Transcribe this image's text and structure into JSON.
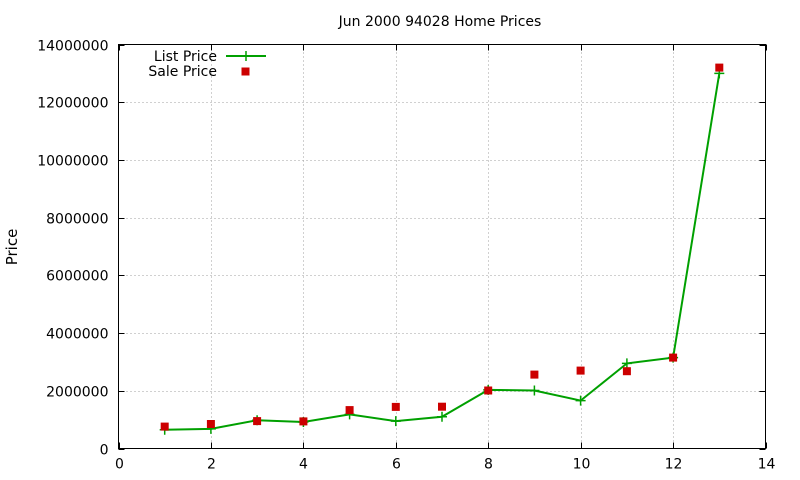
{
  "chart_data": {
    "type": "line",
    "title": "Jun 2000 94028 Home Prices",
    "xlabel": "",
    "ylabel": "Price",
    "xlim": [
      0,
      14
    ],
    "ylim": [
      0,
      14000000
    ],
    "x_ticks": [
      0,
      2,
      4,
      6,
      8,
      10,
      12,
      14
    ],
    "y_ticks": [
      0,
      2000000,
      4000000,
      6000000,
      8000000,
      10000000,
      12000000,
      14000000
    ],
    "grid": true,
    "legend_position": "top-left",
    "series": [
      {
        "name": "List Price",
        "style": "line-with-plus-markers",
        "color": "#00a000",
        "x": [
          1,
          2,
          3,
          4,
          5,
          6,
          7,
          8,
          9,
          10,
          11,
          12,
          13
        ],
        "values": [
          650000,
          680000,
          980000,
          920000,
          1180000,
          950000,
          1100000,
          2030000,
          2010000,
          1660000,
          2950000,
          3150000,
          13000000
        ]
      },
      {
        "name": "Sale Price",
        "style": "square-markers",
        "color": "#cc0000",
        "x": [
          1,
          2,
          3,
          4,
          5,
          6,
          7,
          8,
          9,
          10,
          11,
          12,
          13
        ],
        "values": [
          760000,
          850000,
          950000,
          940000,
          1330000,
          1440000,
          1450000,
          2010000,
          2560000,
          2700000,
          2680000,
          3150000,
          13200000
        ]
      }
    ]
  }
}
